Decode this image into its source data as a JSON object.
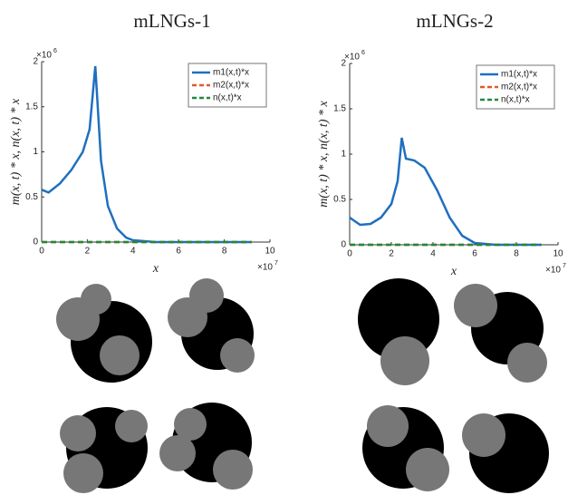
{
  "chart_data": [
    {
      "type": "line",
      "title": "mLNGs-1",
      "xlabel": "x",
      "ylabel": "m(x, t) * x,  n(x, t) * x",
      "x_exponent": {
        "base": "×10",
        "power": "7"
      },
      "y_exponent": {
        "base": "×10",
        "power": "6"
      },
      "x": [
        0,
        0.3,
        0.8,
        1.3,
        1.8,
        2.1,
        2.35,
        2.6,
        2.9,
        3.3,
        3.7,
        4,
        5,
        6,
        7,
        8,
        9.2
      ],
      "series": [
        {
          "name": "m1(x,t)*x",
          "color": "#1f6fbf",
          "dash": "solid",
          "values": [
            0.58,
            0.55,
            0.65,
            0.8,
            1.0,
            1.25,
            1.95,
            0.9,
            0.4,
            0.15,
            0.05,
            0.02,
            0,
            0,
            0,
            0,
            0
          ]
        },
        {
          "name": "m2(x,t)*x",
          "color": "#e05a28",
          "dash": "dashed",
          "values": [
            0,
            0,
            0,
            0,
            0,
            0,
            0,
            0,
            0,
            0,
            0,
            0,
            0,
            0,
            0,
            0,
            0
          ]
        },
        {
          "name": "n(x,t)*x",
          "color": "#1e8a3a",
          "dash": "dashed",
          "values": [
            0,
            0,
            0,
            0,
            0,
            0,
            0,
            0,
            0,
            0,
            0,
            0,
            0,
            0,
            0,
            0,
            0
          ]
        }
      ],
      "xlim": [
        0,
        10
      ],
      "xticks": [
        0,
        2,
        4,
        6,
        8,
        10
      ],
      "ylim": [
        0,
        2
      ],
      "yticks": [
        0,
        0.5,
        1,
        1.5,
        2
      ],
      "legend": "upper right"
    },
    {
      "type": "line",
      "title": "mLNGs-2",
      "xlabel": "x",
      "ylabel": "m(x, t) * x,  n(x, t) * x",
      "x_exponent": {
        "base": "×10",
        "power": "7"
      },
      "y_exponent": {
        "base": "×10",
        "power": "6"
      },
      "x": [
        0,
        0.5,
        1,
        1.5,
        2,
        2.3,
        2.5,
        2.7,
        3.1,
        3.6,
        4.2,
        4.8,
        5.4,
        6,
        7,
        8,
        9.2
      ],
      "series": [
        {
          "name": "m1(x,t)*x",
          "color": "#1f6fbf",
          "dash": "solid",
          "values": [
            0.3,
            0.22,
            0.23,
            0.3,
            0.45,
            0.7,
            1.18,
            0.95,
            0.93,
            0.85,
            0.6,
            0.3,
            0.1,
            0.02,
            0,
            0,
            0
          ]
        },
        {
          "name": "m2(x,t)*x",
          "color": "#e05a28",
          "dash": "dashed",
          "values": [
            0,
            0,
            0,
            0,
            0,
            0,
            0,
            0,
            0,
            0,
            0,
            0,
            0,
            0,
            0,
            0,
            0
          ]
        },
        {
          "name": "n(x,t)*x",
          "color": "#1e8a3a",
          "dash": "dashed",
          "values": [
            0,
            0,
            0,
            0,
            0,
            0,
            0,
            0,
            0,
            0,
            0,
            0,
            0,
            0,
            0,
            0,
            0
          ]
        }
      ],
      "xlim": [
        0,
        10
      ],
      "xticks": [
        0,
        2,
        4,
        6,
        8,
        10
      ],
      "ylim": [
        0,
        2
      ],
      "yticks": [
        0,
        0.5,
        1,
        1.5,
        2
      ],
      "legend": "upper right"
    }
  ]
}
